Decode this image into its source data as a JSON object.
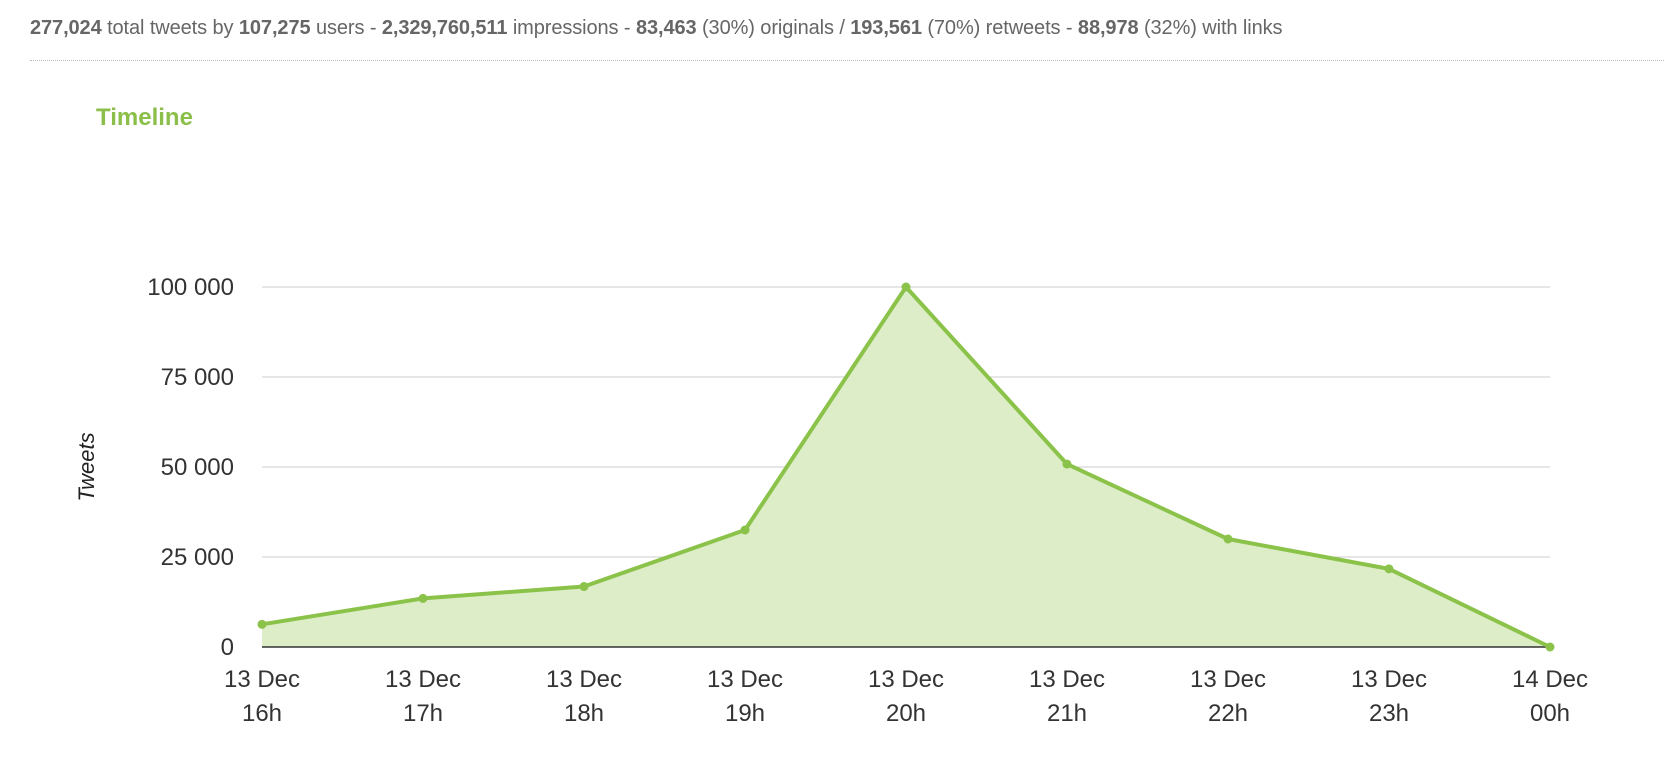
{
  "stats": {
    "total_tweets": "277,024",
    "total_tweets_label": "total tweets by",
    "users": "107,275",
    "users_label": "users -",
    "impressions": "2,329,760,511",
    "impressions_label": "impressions -",
    "originals": "83,463",
    "originals_label": "(30%) originals /",
    "retweets": "193,561",
    "retweets_label": "(70%) retweets -",
    "links": "88,978",
    "links_label": "(32%) with links"
  },
  "chart_data": {
    "type": "area",
    "title": "Timeline",
    "ylabel": "Tweets",
    "xlabel": "",
    "ylim": [
      0,
      100000
    ],
    "y_ticks": [
      0,
      25000,
      50000,
      75000,
      100000
    ],
    "y_tick_labels": [
      "0",
      "25 000",
      "50 000",
      "75 000",
      "100 000"
    ],
    "grid": true,
    "x": [
      [
        "13 Dec",
        "16h"
      ],
      [
        "13 Dec",
        "17h"
      ],
      [
        "13 Dec",
        "18h"
      ],
      [
        "13 Dec",
        "19h"
      ],
      [
        "13 Dec",
        "20h"
      ],
      [
        "13 Dec",
        "21h"
      ],
      [
        "13 Dec",
        "22h"
      ],
      [
        "13 Dec",
        "23h"
      ],
      [
        "14 Dec",
        "00h"
      ]
    ],
    "series": [
      {
        "values": [
          6300,
          13500,
          16800,
          32500,
          100000,
          50800,
          30000,
          21700,
          0
        ],
        "color": "#8bc34a",
        "fill": "#dcedc8"
      }
    ]
  }
}
